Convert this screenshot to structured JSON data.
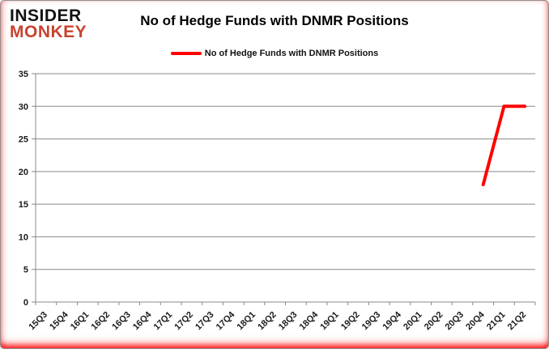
{
  "logo": {
    "line1": "INSIDER",
    "line2": "MONKEY"
  },
  "title": "No of Hedge Funds with DNMR Positions",
  "legend": {
    "label": "No of Hedge Funds with DNMR Positions"
  },
  "colors": {
    "series": "#ff0000",
    "logo_red": "#c84330",
    "grid": "#888888",
    "axis": "#888888",
    "tick_text": "#1a1a1a"
  },
  "chart_data": {
    "type": "line",
    "title": "No of Hedge Funds with DNMR Positions",
    "xlabel": "",
    "ylabel": "",
    "categories": [
      "15Q3",
      "15Q4",
      "16Q1",
      "16Q2",
      "16Q3",
      "16Q4",
      "17Q1",
      "17Q2",
      "17Q3",
      "17Q4",
      "18Q1",
      "18Q2",
      "18Q3",
      "18Q4",
      "19Q1",
      "19Q2",
      "19Q3",
      "19Q4",
      "20Q1",
      "20Q2",
      "20Q3",
      "20Q4",
      "21Q1",
      "21Q2"
    ],
    "series": [
      {
        "name": "No of Hedge Funds with DNMR Positions",
        "color": "#ff0000",
        "values": [
          null,
          null,
          null,
          null,
          null,
          null,
          null,
          null,
          null,
          null,
          null,
          null,
          null,
          null,
          null,
          null,
          null,
          null,
          null,
          null,
          null,
          18,
          30,
          30
        ]
      }
    ],
    "ylim": [
      0,
      35
    ],
    "ytick_step": 5,
    "grid": true,
    "legend_position": "top-center"
  }
}
